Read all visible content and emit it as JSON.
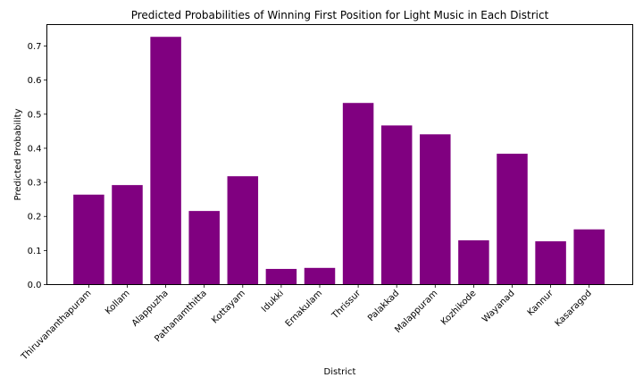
{
  "chart_data": {
    "type": "bar",
    "title": "Predicted Probabilities of Winning First Position for Light Music in Each District",
    "xlabel": "District",
    "ylabel": "Predicted Probability",
    "categories": [
      "Thiruvananthapuram",
      "Kollam",
      "Alappuzha",
      "Pathanamthitta",
      "Kottayam",
      "Idukki",
      "Ernakulam",
      "Thrissur",
      "Palakkad",
      "Malappuram",
      "Kozhikode",
      "Wayanad",
      "Kannur",
      "Kasaragod"
    ],
    "values": [
      0.264,
      0.292,
      0.727,
      0.216,
      0.318,
      0.046,
      0.049,
      0.533,
      0.467,
      0.441,
      0.13,
      0.384,
      0.127,
      0.162
    ],
    "ylim": [
      0,
      0.763
    ],
    "yticks": [
      0.0,
      0.1,
      0.2,
      0.3,
      0.4,
      0.5,
      0.6,
      0.7
    ],
    "ytick_labels": [
      "0.0",
      "0.1",
      "0.2",
      "0.3",
      "0.4",
      "0.5",
      "0.6",
      "0.7"
    ],
    "bar_color": "#800080",
    "grid": false,
    "legend": "none"
  }
}
